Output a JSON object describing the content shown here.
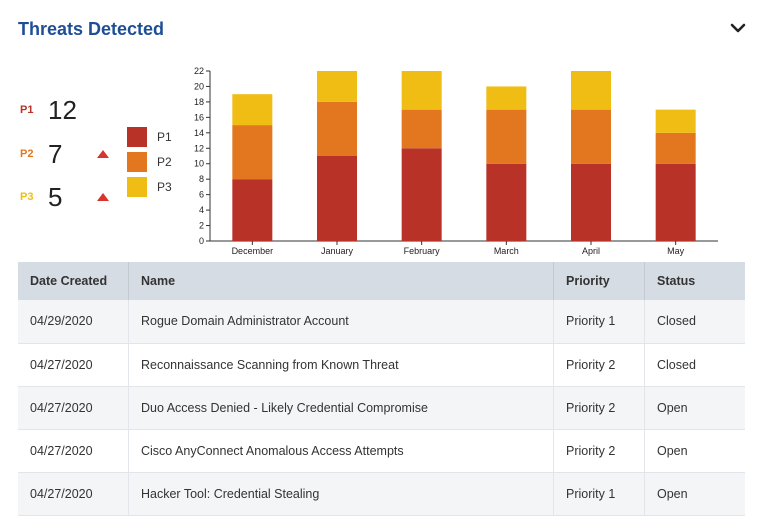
{
  "header": {
    "title": "Threats Detected",
    "collapse_icon": "chevron-down-icon"
  },
  "colors": {
    "title": "#1f4e95",
    "p1": "#b83228",
    "p2": "#e2771f",
    "p3": "#f0bd14",
    "trend_up": "#d9342b"
  },
  "summary": [
    {
      "label": "P1",
      "value": "12",
      "trend": "",
      "color": "#b83228"
    },
    {
      "label": "P2",
      "value": "7",
      "trend": "up",
      "color": "#e2771f"
    },
    {
      "label": "P3",
      "value": "5",
      "trend": "up",
      "color": "#f0bd14"
    }
  ],
  "chart_data": {
    "type": "bar",
    "stacked": true,
    "categories": [
      "December",
      "January",
      "February",
      "March",
      "April",
      "May"
    ],
    "series": [
      {
        "name": "P1",
        "color": "#b83228",
        "values": [
          8,
          11,
          12,
          10,
          10,
          10
        ]
      },
      {
        "name": "P2",
        "color": "#e2771f",
        "values": [
          7,
          7,
          5,
          7,
          7,
          4
        ]
      },
      {
        "name": "P3",
        "color": "#f0bd14",
        "values": [
          4,
          4,
          5,
          3,
          5,
          3
        ]
      }
    ],
    "yticks": [
      0,
      2,
      4,
      6,
      8,
      10,
      12,
      14,
      16,
      18,
      20,
      22
    ],
    "ylim": [
      0,
      22
    ],
    "title": "",
    "xlabel": "",
    "ylabel": "",
    "legend": [
      "P1",
      "P2",
      "P3"
    ]
  },
  "table": {
    "columns": [
      "Date Created",
      "Name",
      "Priority",
      "Status"
    ],
    "rows": [
      {
        "date": "04/29/2020",
        "name": "Rogue Domain Administrator Account",
        "priority": "Priority 1",
        "status": "Closed"
      },
      {
        "date": "04/27/2020",
        "name": "Reconnaissance Scanning from Known Threat",
        "priority": "Priority 2",
        "status": "Closed"
      },
      {
        "date": "04/27/2020",
        "name": "Duo Access Denied - Likely Credential Compromise",
        "priority": "Priority 2",
        "status": "Open"
      },
      {
        "date": "04/27/2020",
        "name": "Cisco AnyConnect Anomalous Access Attempts",
        "priority": "Priority 2",
        "status": "Open"
      },
      {
        "date": "04/27/2020",
        "name": "Hacker Tool: Credential Stealing",
        "priority": "Priority 1",
        "status": "Open"
      }
    ]
  }
}
